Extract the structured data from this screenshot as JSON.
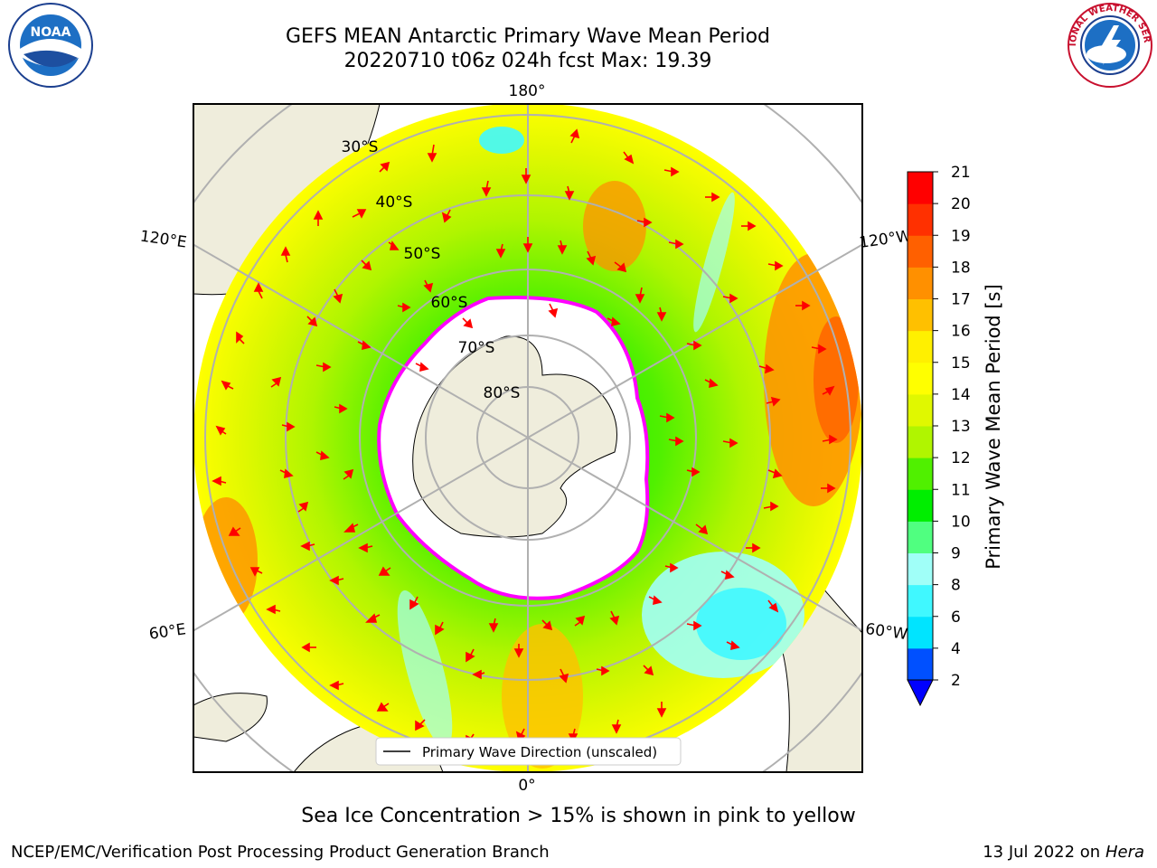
{
  "title": {
    "line1": "GEFS MEAN Antarctic Primary Wave Mean Period",
    "line2": "20220710 t06z 024h fcst   Max: 19.39"
  },
  "logos": {
    "left_text": "NOAA",
    "left_ring_text": "NATIONAL OCEANIC AND ATMOSPHERIC ADMINISTRATION · U.S. DEPARTMENT OF COMMERCE",
    "right_ring_text": "NATIONAL WEATHER SERVICE"
  },
  "map": {
    "longitude_labels": [
      "180°",
      "120°E",
      "120°W",
      "60°E",
      "60°W",
      "0°"
    ],
    "latitude_labels": [
      "30°S",
      "40°S",
      "50°S",
      "60°S",
      "70°S",
      "80°S"
    ],
    "legend_label": "Primary Wave Direction (unscaled)",
    "arrow_color": "#ff0000",
    "ice_edge_color": "#ff00ff",
    "land_color": "#efeddc"
  },
  "colorbar": {
    "label": "Primary Wave Mean Period [s]",
    "ticks": [
      "2",
      "4",
      "6",
      "8",
      "9",
      "10",
      "11",
      "12",
      "13",
      "14",
      "15",
      "16",
      "17",
      "18",
      "19",
      "20",
      "21"
    ],
    "colors": [
      "#0050ff",
      "#00e4ff",
      "#40f8ff",
      "#a0fff8",
      "#50ff80",
      "#00ee00",
      "#50f000",
      "#b0f500",
      "#e0f800",
      "#ffff00",
      "#fff000",
      "#ffc000",
      "#ff9000",
      "#ff6000",
      "#ff3000",
      "#ff0000"
    ],
    "under_color": "#0000ff"
  },
  "footer": {
    "note": "Sea Ice Concentration > 15% is shown in pink to yellow",
    "credit_left": "NCEP/EMC/Verification Post Processing Product Generation Branch",
    "credit_right_prefix": "13 Jul 2022 on ",
    "credit_right_host": "Hera"
  }
}
